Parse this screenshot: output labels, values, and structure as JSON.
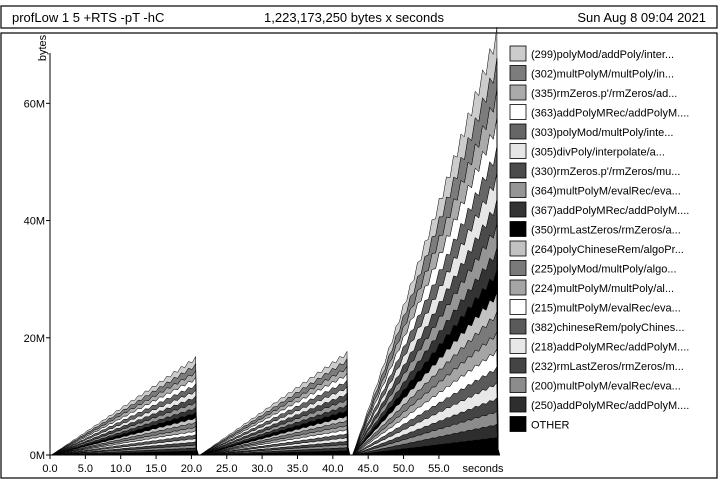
{
  "header": {
    "program": "profLow 1 5 +RTS -pT -hC",
    "total": "1,223,173,250 bytes x seconds",
    "date": "Sun Aug  8 09:04 2021"
  },
  "chart_data": {
    "type": "area",
    "ylabel": "bytes",
    "xlabel": "seconds",
    "xlim": [
      0,
      63.5
    ],
    "ylim": [
      0,
      72000000
    ],
    "x_ticks": [
      "0.0",
      "5.0",
      "10.0",
      "15.0",
      "20.0",
      "25.0",
      "30.0",
      "35.0",
      "40.0",
      "45.0",
      "50.0",
      "55.0"
    ],
    "x_tick_values": [
      0,
      5,
      10,
      15,
      20,
      25,
      30,
      35,
      40,
      45,
      50,
      55
    ],
    "y_ticks": [
      "0M",
      "20M",
      "40M",
      "60M"
    ],
    "y_tick_values": [
      0,
      20000000,
      40000000,
      60000000
    ],
    "stack_order": "last legend entry at the bottom",
    "phases": [
      {
        "x_start": 0.2,
        "x_end": 20.6,
        "peak_total": 16800000,
        "end_total": 1000000
      },
      {
        "x_start": 21.2,
        "x_end": 42.0,
        "peak_total": 17700000,
        "end_total": 1500000
      },
      {
        "x_start": 42.8,
        "x_end": 63.2,
        "peak_total": 73000000,
        "end_total": 1200000
      }
    ],
    "series": [
      {
        "name": "(299)polyMod/addPoly/inter...",
        "color": "#cccccc",
        "share": 0.07
      },
      {
        "name": "(302)multPolyM/multPoly/in...",
        "color": "#7c7c7c",
        "share": 0.07
      },
      {
        "name": "(335)rmZeros.p'/rmZeros/ad...",
        "color": "#aaaaaa",
        "share": 0.065
      },
      {
        "name": "(363)addPolyMRec/addPolyM....",
        "color": "#ffffff",
        "share": 0.065
      },
      {
        "name": "(303)polyMod/multPoly/inte...",
        "color": "#666666",
        "share": 0.06
      },
      {
        "name": "(305)divPoly/interpolate/a...",
        "color": "#e6e6e6",
        "share": 0.06
      },
      {
        "name": "(330)rmZeros.p'/rmZeros/mu...",
        "color": "#4a4a4a",
        "share": 0.055
      },
      {
        "name": "(364)multPolyM/evalRec/eva...",
        "color": "#959595",
        "share": 0.055
      },
      {
        "name": "(367)addPolyMRec/addPolyM....",
        "color": "#333333",
        "share": 0.05
      },
      {
        "name": "(350)rmLastZeros/rmZeros/a...",
        "color": "#000000",
        "share": 0.05
      },
      {
        "name": "(264)polyChineseRem/algoPr...",
        "color": "#c2c2c2",
        "share": 0.045
      },
      {
        "name": "(225)polyMod/multPoly/algo...",
        "color": "#7a7a7a",
        "share": 0.045
      },
      {
        "name": "(224)multPolyM/multPoly/al...",
        "color": "#a5a5a5",
        "share": 0.04
      },
      {
        "name": "(215)multPolyM/evalRec/eva...",
        "color": "#ffffff",
        "share": 0.04
      },
      {
        "name": "(382)chineseRem/polyChines...",
        "color": "#5a5a5a",
        "share": 0.035
      },
      {
        "name": "(218)addPolyMRec/addPolyM....",
        "color": "#e8e8e8",
        "share": 0.035
      },
      {
        "name": "(232)rmLastZeros/rmZeros/m...",
        "color": "#444444",
        "share": 0.03
      },
      {
        "name": "(200)multPolyM/evalRec/eva...",
        "color": "#8c8c8c",
        "share": 0.03
      },
      {
        "name": "(250)addPolyMRec/addPolyM....",
        "color": "#2e2e2e",
        "share": 0.03
      },
      {
        "name": "OTHER",
        "color": "#000000",
        "share": 0.04
      }
    ]
  }
}
